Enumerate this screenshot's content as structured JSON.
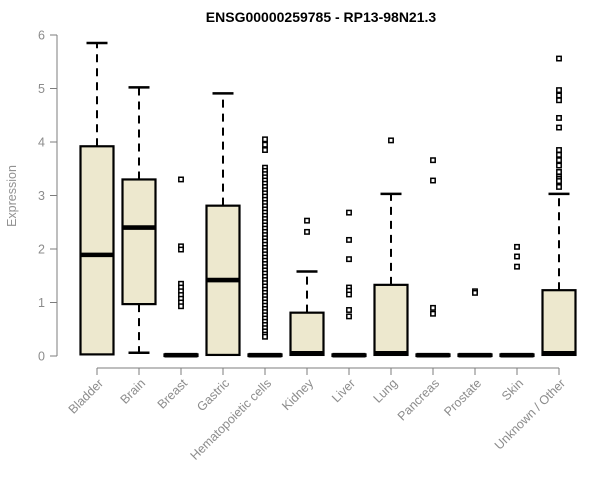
{
  "chart_data": {
    "type": "boxplot",
    "title": "ENSG00000259785 - RP13-98N21.3",
    "ylabel": "Expression",
    "xlabel": "",
    "ylim": [
      0,
      6
    ],
    "yticks": [
      "0",
      "1",
      "2",
      "3",
      "4",
      "5",
      "6"
    ],
    "grid": false,
    "legend": "none",
    "colors": {
      "box_fill": "#EDE8CE",
      "box_border": "#000000",
      "median": "#000000",
      "whisker": "#000000",
      "outlier_fill": "#FFFFFF",
      "axis": "#7D7D7D",
      "tick_label": "#8C8C8C",
      "title": "#000000",
      "background": "#FFFFFF"
    },
    "categories": [
      "Bladder",
      "Brain",
      "Breast",
      "Gastric",
      "Hematopoietic cells",
      "Kidney",
      "Liver",
      "Lung",
      "Pancreas",
      "Prostate",
      "Skin",
      "Unknown / Other"
    ],
    "series": [
      {
        "name": "Bladder",
        "whisker_low": 0.03,
        "q1": 0.03,
        "median": 1.89,
        "q3": 3.92,
        "whisker_high": 5.85,
        "outliers": []
      },
      {
        "name": "Brain",
        "whisker_low": 0.06,
        "q1": 0.97,
        "median": 2.4,
        "q3": 3.3,
        "whisker_high": 5.02,
        "outliers": []
      },
      {
        "name": "Breast",
        "whisker_low": 0,
        "q1": 0,
        "median": 0.015,
        "q3": 0.03,
        "whisker_high": 0.03,
        "outliers": [
          3.3,
          2.05,
          1.99,
          1.35,
          1.28,
          1.21,
          1.14,
          1.07,
          1.0,
          0.93
        ]
      },
      {
        "name": "Gastric",
        "whisker_low": 0.02,
        "q1": 0.02,
        "median": 1.42,
        "q3": 2.81,
        "whisker_high": 4.91,
        "outliers": []
      },
      {
        "name": "Hematopoietic cells",
        "whisker_low": 0,
        "q1": 0,
        "median": 0.015,
        "q3": 0.03,
        "whisker_high": 0.03,
        "outliers": [
          4.05,
          3.95,
          3.85,
          3.52,
          3.46,
          3.4,
          3.34,
          3.28,
          3.22,
          3.16,
          3.1,
          3.04,
          2.98,
          2.92,
          2.86,
          2.8,
          2.74,
          2.68,
          2.62,
          2.56,
          2.5,
          2.44,
          2.38,
          2.32,
          2.26,
          2.2,
          2.14,
          2.08,
          2.02,
          1.96,
          1.9,
          1.84,
          1.78,
          1.72,
          1.66,
          1.6,
          1.54,
          1.48,
          1.42,
          1.36,
          1.3,
          1.24,
          1.18,
          1.12,
          1.06,
          1.0,
          0.94,
          0.88,
          0.82,
          0.76,
          0.7,
          0.64,
          0.58,
          0.52,
          0.46,
          0.4,
          0.36
        ]
      },
      {
        "name": "Kidney",
        "whisker_low": 0.02,
        "q1": 0.02,
        "median": 0.05,
        "q3": 0.81,
        "whisker_high": 1.58,
        "outliers": [
          2.53,
          2.32
        ]
      },
      {
        "name": "Liver",
        "whisker_low": 0,
        "q1": 0,
        "median": 0.015,
        "q3": 0.03,
        "whisker_high": 0.03,
        "outliers": [
          2.68,
          2.17,
          1.81,
          1.28,
          1.22,
          1.15,
          0.86,
          0.74
        ]
      },
      {
        "name": "Lung",
        "whisker_low": 0.02,
        "q1": 0.02,
        "median": 0.05,
        "q3": 1.33,
        "whisker_high": 3.03,
        "outliers": [
          4.03
        ]
      },
      {
        "name": "Pancreas",
        "whisker_low": 0,
        "q1": 0,
        "median": 0.015,
        "q3": 0.03,
        "whisker_high": 0.03,
        "outliers": [
          3.66,
          3.28,
          0.9,
          0.79
        ]
      },
      {
        "name": "Prostate",
        "whisker_low": 0,
        "q1": 0,
        "median": 0.015,
        "q3": 0.03,
        "whisker_high": 0.03,
        "outliers": [
          1.21,
          1.18
        ]
      },
      {
        "name": "Skin",
        "whisker_low": 0,
        "q1": 0,
        "median": 0.015,
        "q3": 0.03,
        "whisker_high": 0.03,
        "outliers": [
          2.04,
          1.86,
          1.67
        ]
      },
      {
        "name": "Unknown / Other",
        "whisker_low": 0.02,
        "q1": 0.02,
        "median": 0.05,
        "q3": 1.23,
        "whisker_high": 3.03,
        "outliers": [
          5.56,
          4.97,
          4.87,
          4.78,
          4.45,
          4.27,
          3.85,
          3.76,
          3.66,
          3.56,
          3.44,
          3.35,
          3.31,
          3.27,
          3.16
        ]
      }
    ]
  }
}
